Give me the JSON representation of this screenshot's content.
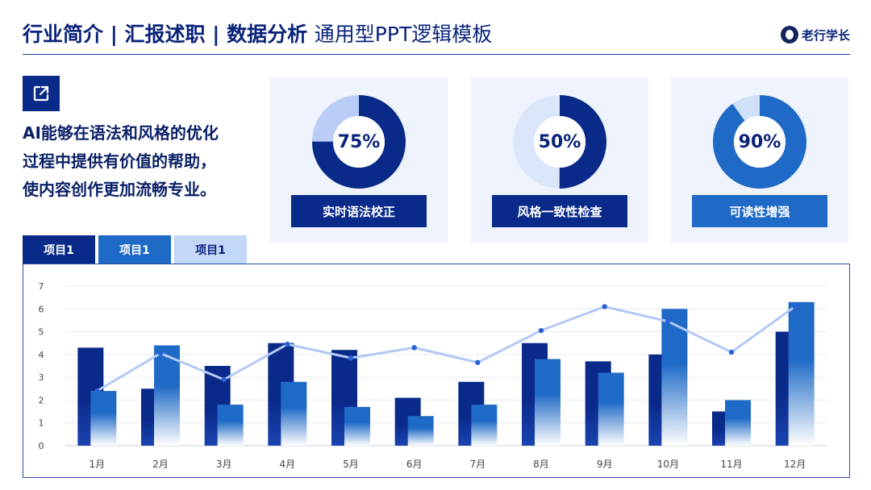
{
  "header": {
    "title_bold": "行业简介 | 汇报述职 | 数据分析",
    "title_thin": "通用型PPT逻辑模板",
    "brand": "老行学长"
  },
  "summary": {
    "lines": [
      "AI能够在语法和风格的优化",
      "过程中提供有价值的帮助，",
      "使内容创作更加流畅专业。"
    ]
  },
  "cards": [
    {
      "percent": 75,
      "label": "75%",
      "button": "实时语法校正",
      "primary": "#0a2a8a",
      "secondary": "#b9cdf6",
      "button_color": "#0a2a8a"
    },
    {
      "percent": 50,
      "label": "50%",
      "button": "风格一致性检查",
      "primary": "#0a2a8a",
      "secondary": "#dce6fb",
      "button_color": "#0a2a8a"
    },
    {
      "percent": 90,
      "label": "90%",
      "button": "可读性增强",
      "primary": "#1f6ac7",
      "secondary": "#cfe0f7",
      "button_color": "#1f6ac7"
    }
  ],
  "tabs": [
    {
      "label": "项目1",
      "bg": "#0a2a8a",
      "fg": "#ffffff"
    },
    {
      "label": "项目1",
      "bg": "#1f6ac7",
      "fg": "#ffffff"
    },
    {
      "label": "项目1",
      "bg": "#c3d7f8",
      "fg": "#0a237a"
    }
  ],
  "chart_data": {
    "type": "bar",
    "categories": [
      "1月",
      "2月",
      "3月",
      "4月",
      "5月",
      "6月",
      "7月",
      "8月",
      "9月",
      "10月",
      "11月",
      "12月"
    ],
    "series": [
      {
        "type": "bar",
        "color": "#0a2a8a",
        "values": [
          4.3,
          2.5,
          3.5,
          4.5,
          4.2,
          2.1,
          2.8,
          4.5,
          3.7,
          4.0,
          1.5,
          5.0
        ]
      },
      {
        "type": "bar",
        "color": "#1f6ac7",
        "values": [
          2.4,
          4.4,
          1.8,
          2.8,
          1.7,
          1.3,
          1.8,
          3.8,
          3.2,
          6.0,
          2.0,
          6.3
        ]
      },
      {
        "type": "line",
        "color": "#b3c9f5",
        "values": [
          2.4,
          4.05,
          2.9,
          4.45,
          3.85,
          4.3,
          3.65,
          5.05,
          6.1,
          5.45,
          4.1,
          6.1
        ]
      }
    ],
    "ylim": [
      0,
      7
    ],
    "yticks": [
      0,
      1,
      2,
      3,
      4,
      5,
      6,
      7
    ],
    "grid": true
  }
}
